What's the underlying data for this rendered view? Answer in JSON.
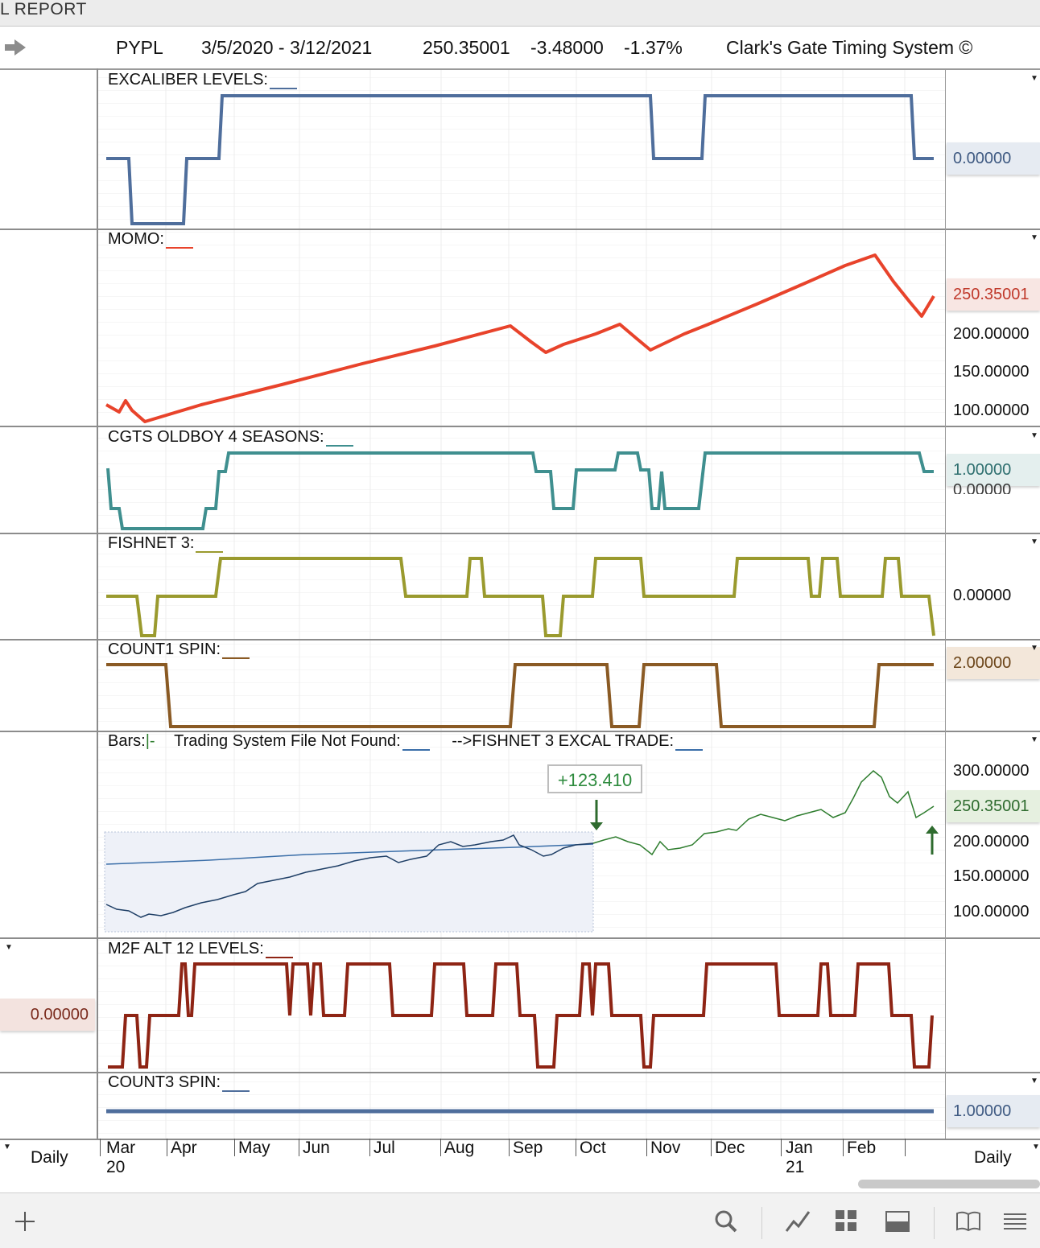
{
  "window": {
    "title": "L REPORT"
  },
  "header": {
    "symbol": "PYPL",
    "date_range": "3/5/2020 - 3/12/2021",
    "last_price": "250.35001",
    "change": "-3.48000",
    "change_pct": "-1.37%",
    "system_name": "Clark's Gate Timing System ©"
  },
  "panels": [
    {
      "id": "excaliber",
      "label": "EXCALIBER LEVELS:",
      "color": "#4f6e9c",
      "value": "0.00000",
      "badge_bg": "#e6ebf2",
      "badge_color": "#3f5a82"
    },
    {
      "id": "momo",
      "label": "MOMO:",
      "color": "#e8432b",
      "value": "250.35001",
      "badge_bg": "#f8e6e3",
      "badge_color": "#c0392b",
      "axis_labels": [
        "200.00000",
        "150.00000",
        "100.00000"
      ]
    },
    {
      "id": "oldboy",
      "label": "CGTS OLDBOY 4 SEASONS:",
      "color": "#3f8f8f",
      "value": "1.00000",
      "badge_bg": "#e4efee",
      "badge_color": "#2e6f6f",
      "axis_labels": [
        "0.00000"
      ]
    },
    {
      "id": "fishnet",
      "label": "FISHNET 3:",
      "color": "#9a9a2e",
      "value": "0.00000",
      "badge_bg": "#ffffff",
      "badge_color": "#111111"
    },
    {
      "id": "count1",
      "label": "COUNT1 SPIN:",
      "color": "#8a5a24",
      "value": "2.00000",
      "badge_bg": "#f3e7da",
      "badge_color": "#6b4418"
    },
    {
      "id": "bars",
      "label_bars": "Bars:",
      "bars_marker": "|-",
      "label_tsf": "Trading System File Not Found:",
      "label_trade": "-->FISHNET 3 EXCAL TRADE:",
      "value": "250.35001",
      "badge_bg": "#e6f0e0",
      "badge_color": "#2e6b2e",
      "axis_labels": [
        "300.00000",
        "200.00000",
        "150.00000",
        "100.00000"
      ],
      "trade_annotation": "+123.410"
    },
    {
      "id": "m2f",
      "label": "M2F ALT 12 LEVELS:",
      "color": "#8e2414",
      "value": "0.00000",
      "badge_bg": "#f3e3df",
      "badge_color": "#7a2a1c"
    },
    {
      "id": "count3",
      "label": "COUNT3 SPIN:",
      "color": "#4f6e9c",
      "value": "1.00000",
      "badge_bg": "#e6ebf2",
      "badge_color": "#3f5a82"
    }
  ],
  "timeline": {
    "months": [
      "Mar",
      "Apr",
      "May",
      "Jun",
      "Jul",
      "Aug",
      "Sep",
      "Oct",
      "Nov",
      "Dec",
      "Jan",
      "Feb"
    ],
    "year_start": "20",
    "year_jan": "21",
    "left_period": "Daily",
    "right_period": "Daily"
  },
  "toolbar": {
    "icons": [
      "add-icon",
      "search-icon",
      "line-chart-icon",
      "grid-icon",
      "panel-icon",
      "book-icon",
      "menu-icon"
    ]
  }
}
